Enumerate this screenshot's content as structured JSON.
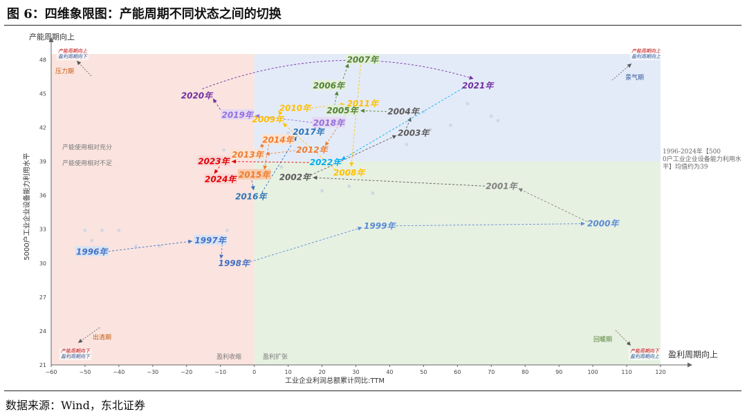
{
  "header": {
    "title": "图 6：四维象限图：产能周期不同状态之间的切换"
  },
  "footer": {
    "source": "数据来源：Wind，东北证券"
  },
  "chart_data": {
    "type": "scatter",
    "xlabel": "工业企业利润总额累计同比:TTM",
    "ylabel": "5000户工业企业设备能力利用水平",
    "y_axis_arrow_label": "产能周期向上",
    "x_axis_arrow_label": "盈利周期向上",
    "xlim": [
      -60,
      120
    ],
    "ylim": [
      21,
      49
    ],
    "x_ticks": [
      -60,
      -50,
      -40,
      -30,
      -20,
      -10,
      0,
      10,
      20,
      30,
      40,
      50,
      60,
      70,
      80,
      90,
      100,
      110,
      120
    ],
    "y_ticks": [
      21,
      24,
      27,
      30,
      33,
      36,
      39,
      42,
      45,
      48
    ],
    "mean_capacity_utilization": 39,
    "mean_note": "1996-2024年【5000户工业企业设备能力利用水平】均值约为39",
    "quadrants": [
      {
        "name": "压力期",
        "corner_label_1": "产能周期向上",
        "corner_label_2": "盈利周期向下",
        "color": "#fbe4df"
      },
      {
        "name": "景气期",
        "corner_label_1": "产能周期向上",
        "corner_label_2": "盈利周期向上",
        "color": "#e4ebf8"
      },
      {
        "name": "出清期",
        "corner_label_1": "产能周期向下",
        "corner_label_2": "盈利周期向下",
        "color": "#fbe4df"
      },
      {
        "name": "回暖期",
        "corner_label_1": "产能周期向下",
        "corner_label_2": "盈利周期向上",
        "color": "#e7f1e2"
      }
    ],
    "region_notes": {
      "capacity_full": "产能使用相对充分",
      "capacity_insufficient": "产能使用相对不足",
      "profit_contract": "盈利收缩",
      "profit_expand": "盈利扩张"
    },
    "years": [
      {
        "label": "1996年",
        "x": -48,
        "y": 31.0,
        "color": "#4472c4",
        "bg": "#d9e3f4"
      },
      {
        "label": "1997年",
        "x": -13,
        "y": 32.0,
        "color": "#4472c4",
        "bg": "#d9e3f4"
      },
      {
        "label": "1998年",
        "x": -6,
        "y": 30.0,
        "color": "#4472c4",
        "bg": "#ffffff"
      },
      {
        "label": "1999年",
        "x": 37,
        "y": 33.3,
        "color": "#5b8ad6",
        "bg": "#ffffff"
      },
      {
        "label": "2000年",
        "x": 103,
        "y": 33.5,
        "color": "#5b8ad6",
        "bg": "#ffffff"
      },
      {
        "label": "2001年",
        "x": 73,
        "y": 36.8,
        "color": "#808080",
        "bg": "#ffffff"
      },
      {
        "label": "2002年",
        "x": 12,
        "y": 37.6,
        "color": "#595959",
        "bg": "#ffffff"
      },
      {
        "label": "2003年",
        "x": 47,
        "y": 41.5,
        "color": "#595959",
        "bg": "#ffffff"
      },
      {
        "label": "2004年",
        "x": 44,
        "y": 43.4,
        "color": "#595959",
        "bg": "#ffffff"
      },
      {
        "label": "2005年",
        "x": 26,
        "y": 43.5,
        "color": "#548235",
        "bg": "#e2efda"
      },
      {
        "label": "2006年",
        "x": 22,
        "y": 45.7,
        "color": "#548235",
        "bg": "#e2efda"
      },
      {
        "label": "2007年",
        "x": 32,
        "y": 48.0,
        "color": "#548235",
        "bg": "#e2efda"
      },
      {
        "label": "2008年",
        "x": 28,
        "y": 38.0,
        "color": "#ffc000",
        "bg": "#ffffff"
      },
      {
        "label": "2009年",
        "x": 4,
        "y": 42.7,
        "color": "#ffc000",
        "bg": "#ffffff"
      },
      {
        "label": "2010年",
        "x": 12,
        "y": 43.7,
        "color": "#ffc000",
        "bg": "#ffffff"
      },
      {
        "label": "2011年",
        "x": 32,
        "y": 44.1,
        "color": "#ffc000",
        "bg": "#ffffff"
      },
      {
        "label": "2012年",
        "x": 17,
        "y": 40.0,
        "color": "#ed7d31",
        "bg": "#ffffff"
      },
      {
        "label": "2013年",
        "x": -2,
        "y": 39.6,
        "color": "#ed7d31",
        "bg": "#fbe4d5"
      },
      {
        "label": "2014年",
        "x": 7,
        "y": 40.9,
        "color": "#ed7d31",
        "bg": "#fbe4d5"
      },
      {
        "label": "2015年",
        "x": 0,
        "y": 37.8,
        "color": "#ed7d31",
        "bg": "#f8cbad"
      },
      {
        "label": "2016年",
        "x": -1,
        "y": 35.9,
        "color": "#2e75b6",
        "bg": "#ffffff"
      },
      {
        "label": "2017年",
        "x": 16,
        "y": 41.6,
        "color": "#2e75b6",
        "bg": "#ffffff"
      },
      {
        "label": "2018年",
        "x": 22,
        "y": 42.4,
        "color": "#9370db",
        "bg": "#e6d9f2"
      },
      {
        "label": "2019年",
        "x": -5,
        "y": 43.1,
        "color": "#9370db",
        "bg": "#e6d9f2"
      },
      {
        "label": "2020年",
        "x": -17,
        "y": 44.8,
        "color": "#7030a0",
        "bg": "#ffffff"
      },
      {
        "label": "2021年",
        "x": 66,
        "y": 45.7,
        "color": "#7030a0",
        "bg": "#ffffff"
      },
      {
        "label": "2022年",
        "x": 21,
        "y": 38.9,
        "color": "#00b0f0",
        "bg": "#ffffff"
      },
      {
        "label": "2023年",
        "x": -12,
        "y": 39.0,
        "color": "#e00000",
        "bg": "#fbd5d5"
      },
      {
        "label": "2024年",
        "x": -10,
        "y": 37.4,
        "color": "#e00000",
        "bg": "#fbd5d5"
      }
    ]
  }
}
